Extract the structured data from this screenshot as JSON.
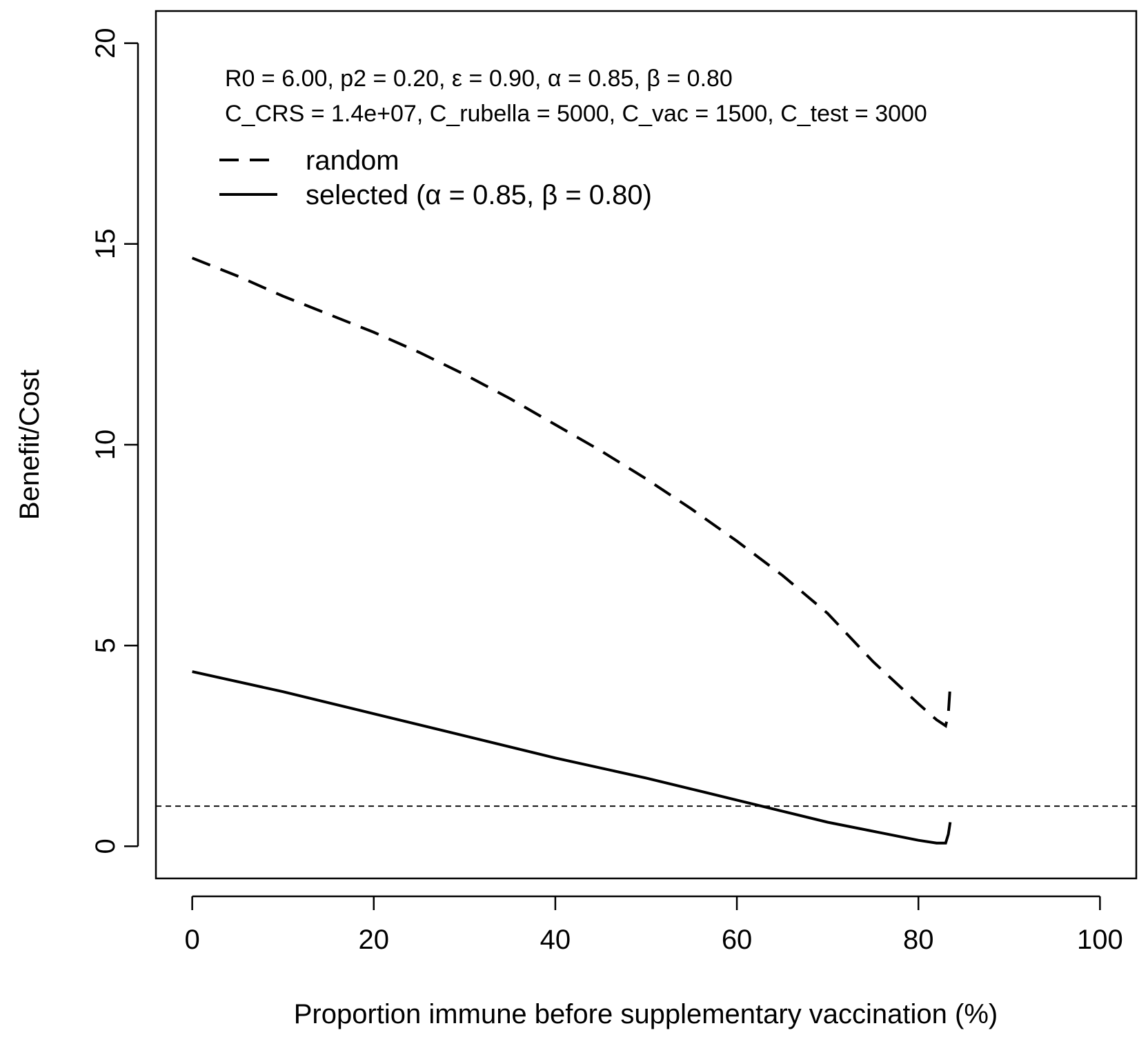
{
  "chart_data": {
    "type": "line",
    "xlabel": "Proportion immune before supplementary vaccination (%)",
    "ylabel": "Benefit/Cost",
    "xlim": [
      -4,
      104
    ],
    "ylim": [
      -0.8,
      20.8
    ],
    "x_ticks": [
      0,
      20,
      40,
      60,
      80,
      100
    ],
    "y_ticks": [
      0,
      5,
      10,
      15,
      20
    ],
    "annotations": [
      "R0 = 6.00, p2 = 0.20, ε = 0.90, α = 0.85, β = 0.80",
      "C_CRS = 1.4e+07, C_rubella = 5000, C_vac = 1500, C_test = 3000"
    ],
    "legend_position": "top-left",
    "series": [
      {
        "name": "random",
        "style": "dashed",
        "x": [
          0,
          5,
          10,
          15,
          20,
          25,
          30,
          35,
          40,
          45,
          50,
          55,
          60,
          65,
          70,
          75,
          80,
          82,
          83,
          83.3,
          83.5
        ],
        "y": [
          14.65,
          14.2,
          13.7,
          13.25,
          12.8,
          12.3,
          11.75,
          11.15,
          10.5,
          9.85,
          9.15,
          8.4,
          7.6,
          6.75,
          5.8,
          4.6,
          3.55,
          3.15,
          3.0,
          3.3,
          4.0
        ]
      },
      {
        "name": "selected (α = 0.85, β = 0.80)",
        "style": "solid",
        "x": [
          0,
          10,
          20,
          30,
          40,
          50,
          60,
          70,
          80,
          82,
          83,
          83.3,
          83.5
        ],
        "y": [
          4.35,
          3.85,
          3.3,
          2.75,
          2.2,
          1.7,
          1.15,
          0.6,
          0.15,
          0.08,
          0.08,
          0.3,
          0.6
        ]
      }
    ],
    "reference_line": {
      "y": 1,
      "style": "dotted"
    }
  }
}
